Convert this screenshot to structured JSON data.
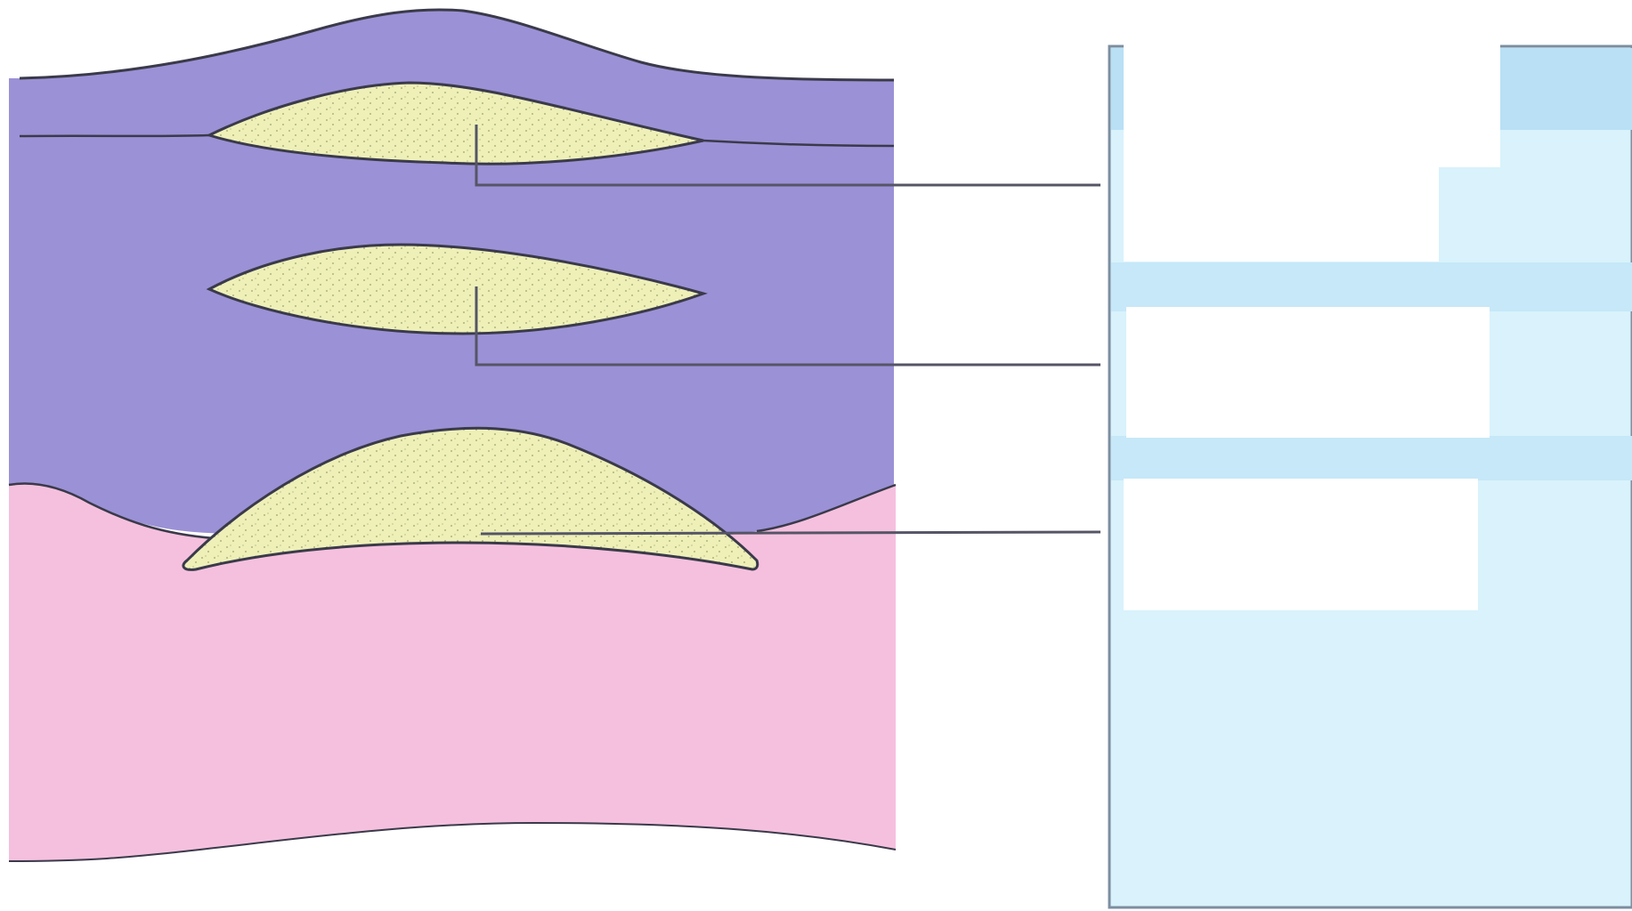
{
  "diagram": {
    "kind": "geological cross-section with blank label boxes",
    "colors": {
      "upper_layer": "#9b91d6",
      "lower_layer": "#f5c0de",
      "sand_lens": "#eef0b8",
      "sand_dots": "#9aa36b",
      "outline": "#3a3a4a",
      "leader_line": "#555566",
      "panel_light": "#d9f2fb",
      "panel_band": "#b9e0f5",
      "panel_border": "#7c8ea0",
      "label_box": "#ffffff"
    },
    "lenses": [
      {
        "name": "upper-lens",
        "pattern": "stippled"
      },
      {
        "name": "middle-lens",
        "pattern": "stippled"
      },
      {
        "name": "lower-lens",
        "pattern": "stippled"
      }
    ],
    "labels": [
      {
        "name": "label-box-1",
        "text": ""
      },
      {
        "name": "label-box-2",
        "text": ""
      },
      {
        "name": "label-box-3",
        "text": ""
      }
    ]
  }
}
